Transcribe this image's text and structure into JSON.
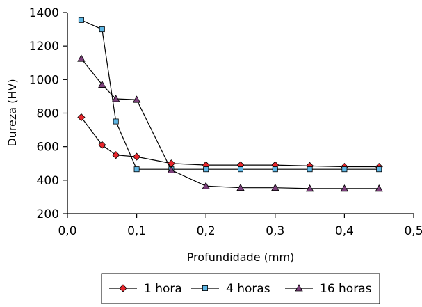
{
  "chart_data": {
    "type": "line",
    "title": "",
    "xlabel": "Profundidade (mm)",
    "ylabel": "Dureza (HV)",
    "xlim": [
      0.0,
      0.5
    ],
    "ylim": [
      200,
      1400
    ],
    "x_ticks": [
      "0,0",
      "0,1",
      "0,2",
      "0,3",
      "0,4",
      "0,5"
    ],
    "y_ticks": [
      "200",
      "400",
      "600",
      "800",
      "1000",
      "1200",
      "1400"
    ],
    "grid": false,
    "legend_position": "bottom",
    "series": [
      {
        "name": "1 hora",
        "marker": "diamond",
        "color": "#e8262c",
        "x": [
          0.02,
          0.05,
          0.07,
          0.1,
          0.15,
          0.2,
          0.25,
          0.3,
          0.35,
          0.4,
          0.45
        ],
        "y": [
          775,
          610,
          550,
          540,
          500,
          490,
          490,
          490,
          485,
          480,
          480
        ]
      },
      {
        "name": "4 horas",
        "marker": "square",
        "color": "#5eb6e4",
        "x": [
          0.02,
          0.05,
          0.07,
          0.1,
          0.15,
          0.2,
          0.25,
          0.3,
          0.35,
          0.4,
          0.45
        ],
        "y": [
          1355,
          1300,
          750,
          465,
          465,
          465,
          465,
          465,
          465,
          465,
          465
        ]
      },
      {
        "name": "16 horas",
        "marker": "triangle",
        "color": "#7b3f7a",
        "x": [
          0.02,
          0.05,
          0.07,
          0.1,
          0.15,
          0.2,
          0.25,
          0.3,
          0.35,
          0.4,
          0.45
        ],
        "y": [
          1125,
          970,
          885,
          880,
          460,
          365,
          355,
          355,
          350,
          350,
          350
        ]
      }
    ]
  }
}
